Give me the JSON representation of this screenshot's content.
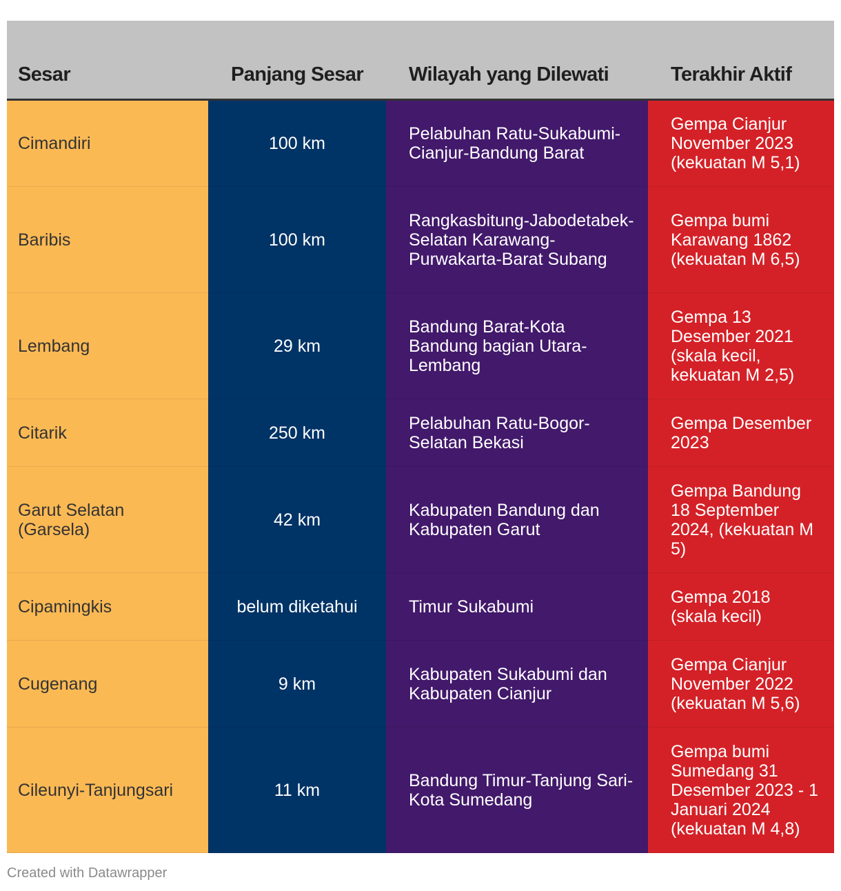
{
  "chart_data": {
    "type": "table",
    "columns": [
      "Sesar",
      "Panjang Sesar",
      "Wilayah yang Dilewati",
      "Terakhir Aktif"
    ],
    "rows": [
      {
        "name": "Cimandiri",
        "length": "100 km",
        "region": "Pelabuhan Ratu-Sukabumi-Cianjur-Bandung Barat",
        "last_active": "Gempa Cianjur November 2023 (kekuatan M 5,1)"
      },
      {
        "name": "Baribis",
        "length": "100 km",
        "region": "Rangkasbitung-Jabodetabek-Selatan Karawang-Purwakarta-Barat Subang",
        "last_active": "Gempa bumi Karawang 1862 (kekuatan M 6,5)"
      },
      {
        "name": "Lembang",
        "length": "29 km",
        "region": "Bandung Barat-Kota Bandung bagian Utara-Lembang",
        "last_active": "Gempa 13 Desember 2021 (skala kecil, kekuatan M 2,5)"
      },
      {
        "name": "Citarik",
        "length": "250 km",
        "region": "Pelabuhan Ratu-Bogor-Selatan Bekasi",
        "last_active": "Gempa Desember 2023"
      },
      {
        "name": "Garut Selatan (Garsela)",
        "length": "42 km",
        "region": "Kabupaten Bandung dan Kabupaten Garut",
        "last_active": "Gempa Bandung 18 September 2024, (kekuatan M 5)"
      },
      {
        "name": "Cipamingkis",
        "length": "belum diketahui",
        "region": "Timur Sukabumi",
        "last_active": "Gempa 2018 (skala kecil)"
      },
      {
        "name": "Cugenang",
        "length": "9 km",
        "region": "Kabupaten Sukabumi dan Kabupaten Cianjur",
        "last_active": "Gempa Cianjur November 2022 (kekuatan M 5,6)"
      },
      {
        "name": "Cileunyi-Tanjungsari",
        "length": "11 km",
        "region": "Bandung Timur-Tanjung Sari-Kota Sumedang",
        "last_active": "Gempa bumi Sumedang 31 Desember 2023 - 1 Januari 2024 (kekuatan M 4,8)"
      }
    ]
  },
  "colors": {
    "header_bg": "#c2c2c2",
    "col_sesar": "#fbb954",
    "col_panjang": "#003366",
    "col_wilayah": "#42196b",
    "col_terakhir": "#d42127"
  },
  "footer": {
    "credit": "Created with Datawrapper"
  }
}
